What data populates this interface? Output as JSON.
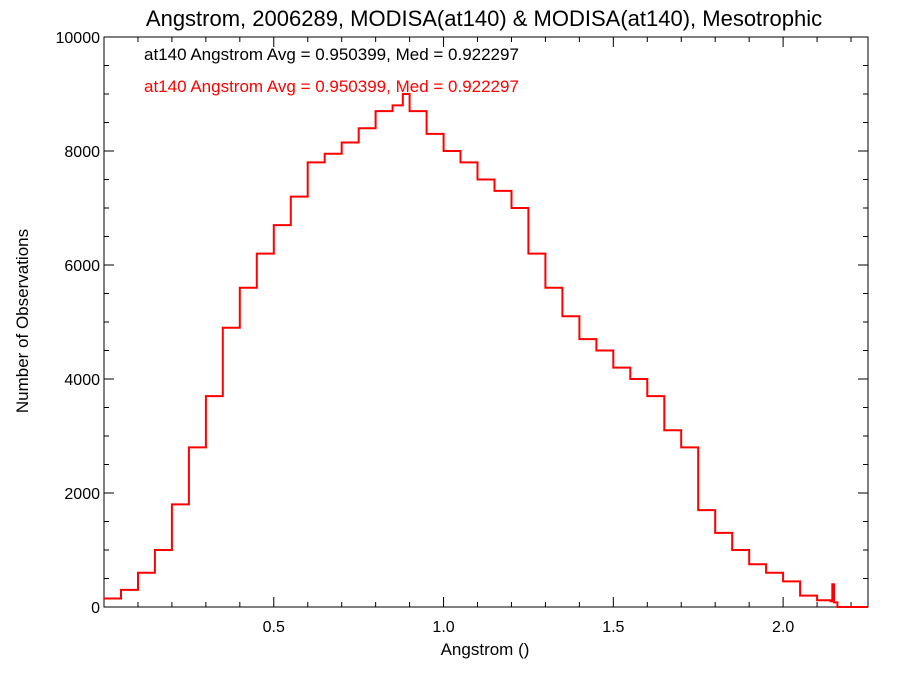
{
  "chart_data": {
    "type": "line",
    "step": true,
    "title": "Angstrom, 2006289, MODISA(at140) & MODISA(at140), Mesotrophic",
    "xlabel": "Angstrom ()",
    "ylabel": "Number of Observations",
    "xlim": [
      0.0,
      2.25
    ],
    "ylim": [
      0,
      10000
    ],
    "x_ticks": [
      0.5,
      1.0,
      1.5,
      2.0
    ],
    "x_tick_labels": [
      "0.5",
      "1.0",
      "1.5",
      "2.0"
    ],
    "y_ticks": [
      0,
      2000,
      4000,
      6000,
      8000,
      10000
    ],
    "y_tick_labels": [
      "0",
      "2000",
      "4000",
      "6000",
      "8000",
      "10000"
    ],
    "grid": false,
    "annotations": [
      {
        "text": "at140 Angstrom Avg = 0.950399, Med = 0.922297",
        "color": "#000000"
      },
      {
        "text": "at140 Angstrom Avg = 0.950399, Med = 0.922297",
        "color": "#ff0000"
      }
    ],
    "series": [
      {
        "color": "#ff0000",
        "x": [
          0.0,
          0.05,
          0.1,
          0.15,
          0.2,
          0.25,
          0.3,
          0.35,
          0.4,
          0.45,
          0.5,
          0.55,
          0.6,
          0.65,
          0.7,
          0.75,
          0.8,
          0.85,
          0.88,
          0.9,
          0.95,
          1.0,
          1.05,
          1.1,
          1.15,
          1.2,
          1.25,
          1.3,
          1.35,
          1.4,
          1.45,
          1.5,
          1.55,
          1.6,
          1.65,
          1.7,
          1.75,
          1.8,
          1.85,
          1.9,
          1.95,
          2.0,
          2.05,
          2.1,
          2.14,
          2.145,
          2.15,
          2.16,
          2.2,
          2.25
        ],
        "y": [
          150,
          300,
          600,
          1000,
          1800,
          2800,
          3700,
          4900,
          5600,
          6200,
          6700,
          7200,
          7800,
          7950,
          8150,
          8400,
          8700,
          8800,
          9000,
          8700,
          8300,
          8000,
          7800,
          7500,
          7300,
          7000,
          6200,
          5600,
          5100,
          4700,
          4500,
          4200,
          4000,
          3700,
          3100,
          2800,
          1700,
          1300,
          1000,
          750,
          600,
          450,
          200,
          120,
          100,
          400,
          80,
          0,
          0,
          0
        ]
      }
    ]
  }
}
